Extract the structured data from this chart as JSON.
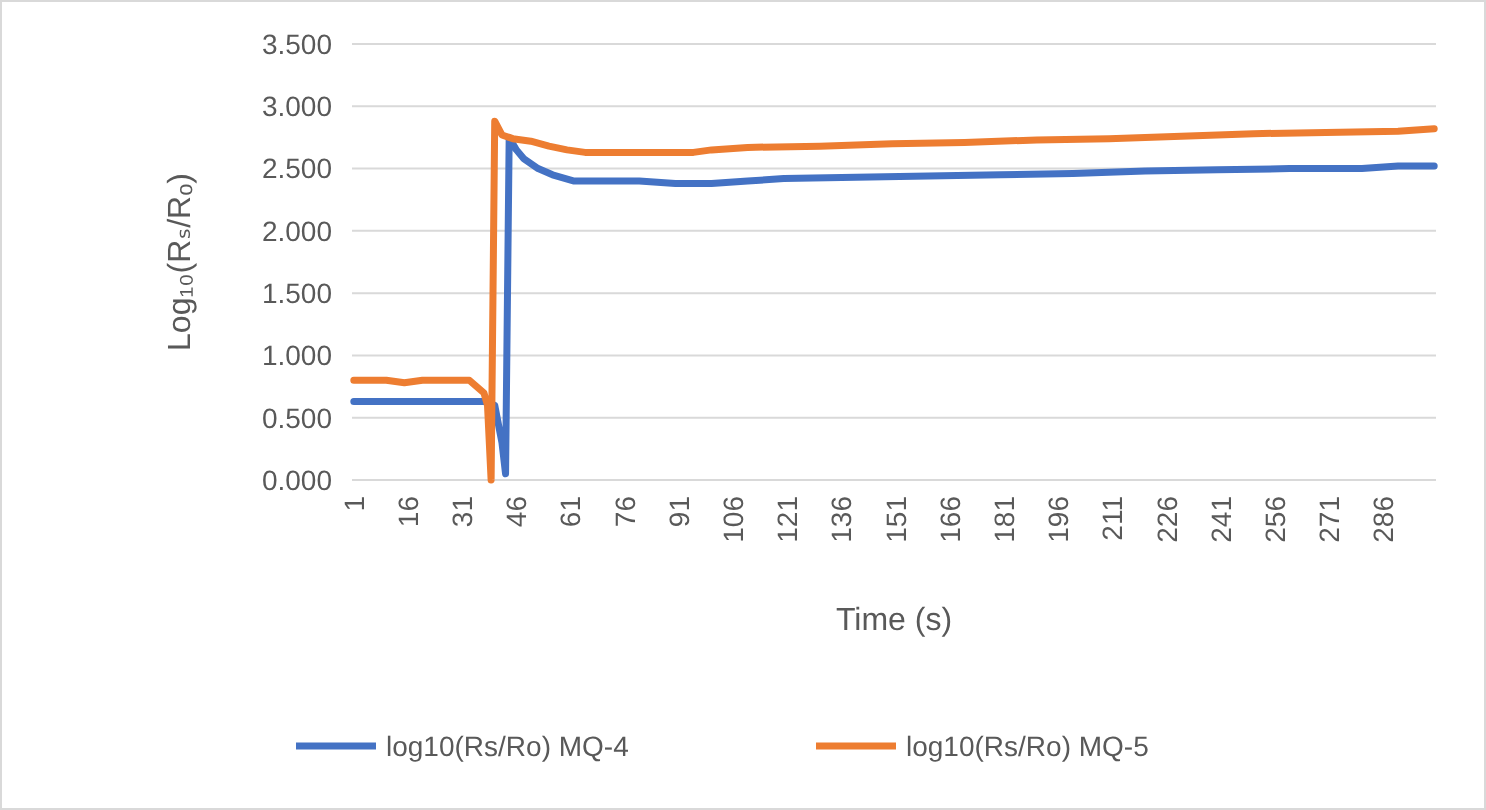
{
  "chart_data": {
    "type": "line",
    "xlabel": "Time (s)",
    "ylabel": "Log₁₀(Rₛ/Rₒ)",
    "xlim": [
      0.5,
      300.5
    ],
    "xticks": [
      1,
      16,
      31,
      46,
      61,
      76,
      91,
      106,
      121,
      136,
      151,
      166,
      181,
      196,
      211,
      226,
      241,
      256,
      271,
      286
    ],
    "ylim": [
      0,
      3.5
    ],
    "yticks": [
      {
        "value": 0,
        "label": "0.000"
      },
      {
        "value": 0.5,
        "label": "0.500"
      },
      {
        "value": 1,
        "label": "1.000"
      },
      {
        "value": 1.5,
        "label": "1.500"
      },
      {
        "value": 2,
        "label": "2.000"
      },
      {
        "value": 2.5,
        "label": "2.500"
      },
      {
        "value": 3,
        "label": "3.000"
      },
      {
        "value": 3.5,
        "label": "3.500"
      }
    ],
    "grid": "y",
    "legend": "bottom",
    "marker": "none",
    "line_style": "solid",
    "series": [
      {
        "name": "log10(Rs/Ro) MQ-4",
        "color": "#4472c4",
        "x": [
          1,
          10,
          20,
          30,
          37,
          40,
          42,
          43,
          44,
          46,
          48,
          52,
          56,
          62,
          70,
          80,
          90,
          100,
          110,
          120,
          140,
          160,
          180,
          200,
          220,
          240,
          260,
          280,
          290,
          300
        ],
        "values": [
          0.63,
          0.63,
          0.63,
          0.63,
          0.63,
          0.6,
          0.3,
          0.05,
          2.75,
          2.65,
          2.58,
          2.5,
          2.45,
          2.4,
          2.4,
          2.4,
          2.38,
          2.38,
          2.4,
          2.42,
          2.43,
          2.44,
          2.45,
          2.46,
          2.48,
          2.49,
          2.5,
          2.5,
          2.52,
          2.52
        ]
      },
      {
        "name": "log10(Rs/Ro) MQ-5",
        "color": "#ed7d31",
        "x": [
          1,
          10,
          15,
          20,
          30,
          33,
          37,
          38,
          39,
          40,
          42,
          45,
          50,
          55,
          60,
          65,
          80,
          95,
          100,
          110,
          130,
          150,
          170,
          190,
          210,
          230,
          250,
          270,
          290,
          300
        ],
        "values": [
          0.8,
          0.8,
          0.78,
          0.8,
          0.8,
          0.8,
          0.7,
          0.6,
          0,
          2.88,
          2.77,
          2.74,
          2.72,
          2.68,
          2.65,
          2.63,
          2.63,
          2.63,
          2.65,
          2.67,
          2.68,
          2.7,
          2.71,
          2.73,
          2.74,
          2.76,
          2.78,
          2.79,
          2.8,
          2.82
        ]
      }
    ]
  }
}
